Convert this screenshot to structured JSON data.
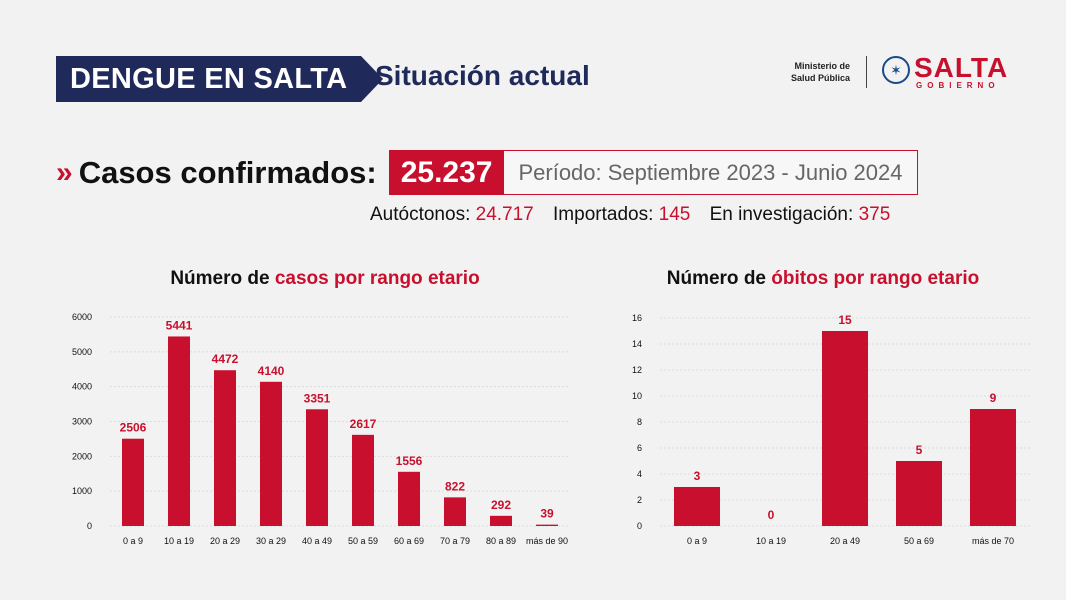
{
  "header": {
    "badge": "DENGUE EN SALTA",
    "subtitle": "Situación actual",
    "ministerio_line1": "Ministerio de",
    "ministerio_line2": "Salud Pública",
    "logo_name": "SALTA",
    "logo_sub": "GOBIERNO"
  },
  "summary": {
    "chevron": "»",
    "cases_label": "Casos confirmados:",
    "cases_value": "25.237",
    "period": "Período: Septiembre 2023 - Junio 2024",
    "autoctonos_label": "Autóctonos:",
    "autoctonos_value": "24.717",
    "importados_label": "Importados:",
    "importados_value": "145",
    "investigacion_label": "En investigación:",
    "investigacion_value": "375"
  },
  "colors": {
    "bar": "#c8102e",
    "navy": "#1f2a5a"
  },
  "chart_data": [
    {
      "type": "bar",
      "title_prefix": "Número de",
      "title_highlight": "casos por rango etario",
      "categories": [
        "0 a 9",
        "10 a 19",
        "20 a 29",
        "30 a 29",
        "40 a 49",
        "50 a 59",
        "60 a 69",
        "70 a 79",
        "80 a 89",
        "más de 90"
      ],
      "values": [
        2506,
        5441,
        4472,
        4140,
        3351,
        2617,
        1556,
        822,
        292,
        39
      ],
      "ylim": [
        0,
        6000
      ],
      "yticks": [
        0,
        1000,
        2000,
        3000,
        4000,
        5000,
        6000
      ],
      "grid": true,
      "data_labels": true
    },
    {
      "type": "bar",
      "title_prefix": "Número de",
      "title_highlight": "óbitos por rango etario",
      "categories": [
        "0 a 9",
        "10 a 19",
        "20 a 49",
        "50 a 69",
        "más de 70"
      ],
      "values": [
        3,
        0,
        15,
        5,
        9
      ],
      "ylim": [
        0,
        16
      ],
      "yticks": [
        0,
        2,
        4,
        6,
        8,
        10,
        12,
        14,
        16
      ],
      "grid": true,
      "data_labels": true
    }
  ]
}
